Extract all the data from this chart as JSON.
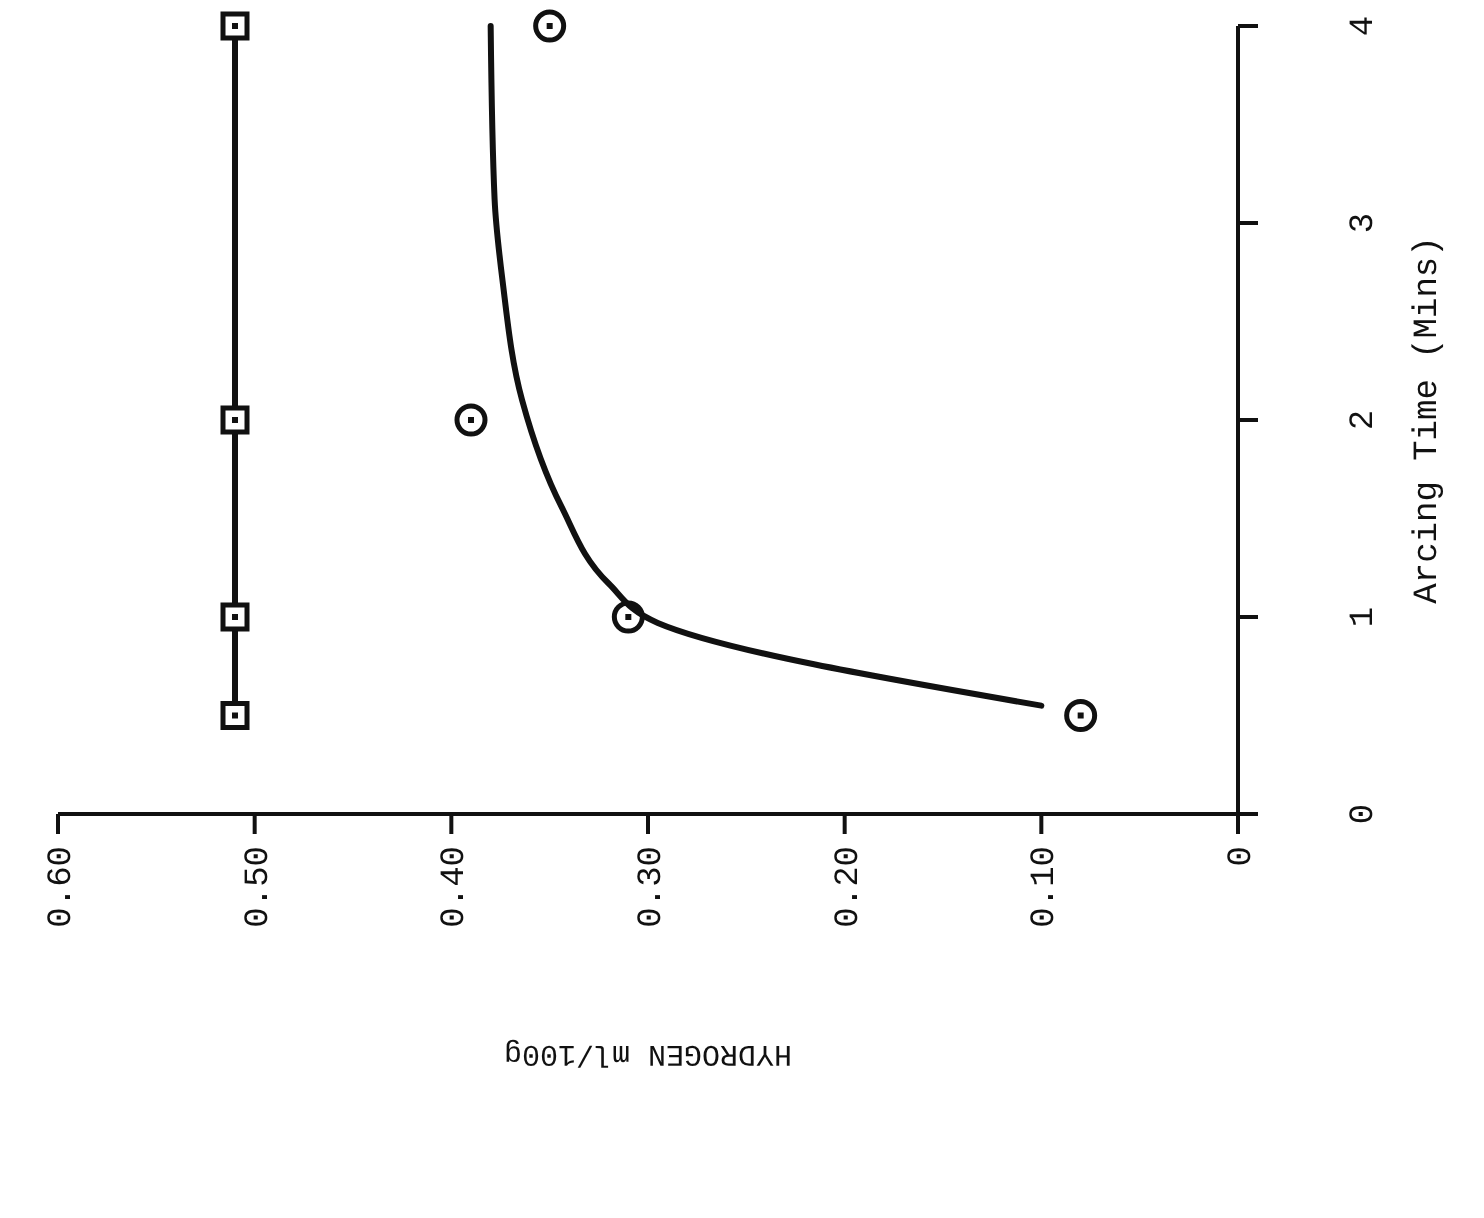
{
  "chart_data": {
    "type": "line",
    "xlabel": "HYDROGEN ml/100g",
    "ylabel": "Arcing Time (Mins)",
    "xlim": [
      0.6,
      0
    ],
    "xticks": [
      {
        "value": 0.6,
        "label": "0.60"
      },
      {
        "value": 0.5,
        "label": "0.50"
      },
      {
        "value": 0.4,
        "label": "0.40"
      },
      {
        "value": 0.3,
        "label": "0.30"
      },
      {
        "value": 0.2,
        "label": "0.20"
      },
      {
        "value": 0.1,
        "label": "0.10"
      },
      {
        "value": 0,
        "label": "0"
      }
    ],
    "ylim": [
      0,
      4
    ],
    "yticks": [
      0,
      1,
      2,
      3,
      4
    ],
    "grid": false,
    "series": [
      {
        "marker": "square",
        "color": "#111111",
        "x": [
          0.51,
          0.51,
          0.51,
          0.51
        ],
        "values": [
          0.5,
          1,
          2,
          4
        ]
      },
      {
        "type": "scatter",
        "marker": "circle",
        "color": "#111111",
        "x": [
          0.08,
          0.31,
          0.39,
          0.35
        ],
        "values": [
          0.5,
          1,
          2,
          4
        ]
      },
      {
        "marker": "none",
        "color": "#111111",
        "x": [
          0.1,
          0.295,
          0.32,
          0.344,
          0.364,
          0.374,
          0.378,
          0.38
        ],
        "values": [
          0.55,
          0.97,
          1.17,
          1.56,
          2.1,
          2.71,
          3.12,
          4.0
        ]
      }
    ]
  }
}
